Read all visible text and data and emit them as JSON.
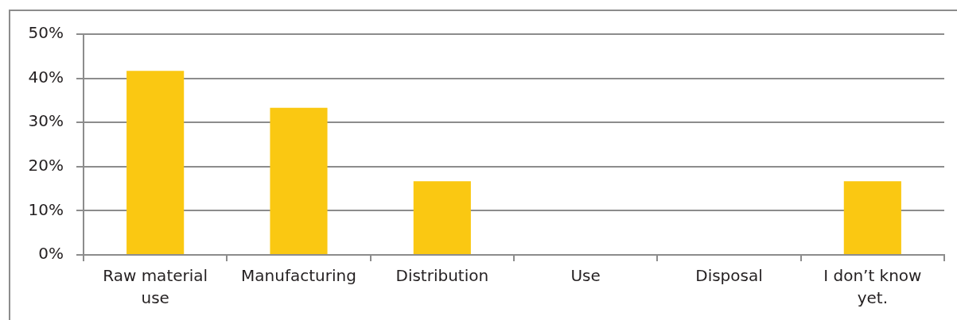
{
  "chart_data": {
    "type": "bar",
    "categories": [
      "Raw material use",
      "Manufacturing",
      "Distribution",
      "Use",
      "Disposal",
      "I don’t know yet."
    ],
    "values": [
      41.7,
      33.3,
      16.7,
      0,
      0,
      16.7
    ],
    "color": "#fac812",
    "ylim": [
      0,
      50
    ],
    "yticks": [
      {
        "value": 0,
        "label": "0%"
      },
      {
        "value": 10,
        "label": "10%"
      },
      {
        "value": 20,
        "label": "20%"
      },
      {
        "value": 30,
        "label": "30%"
      },
      {
        "value": 40,
        "label": "40%"
      },
      {
        "value": 50,
        "label": "50%"
      }
    ],
    "grid": "y"
  }
}
